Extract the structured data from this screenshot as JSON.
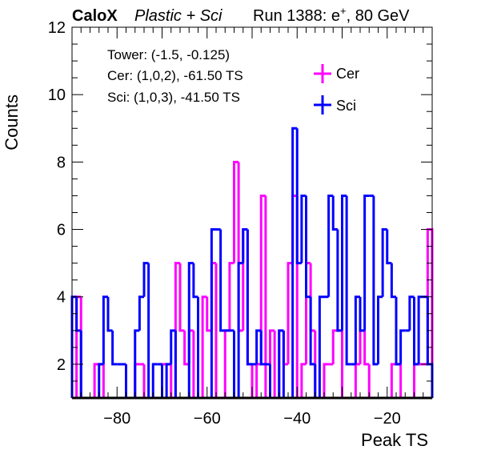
{
  "chart_data": {
    "type": "histogram",
    "title": {
      "experiment": "CaloX",
      "detector": "Plastic + Sci",
      "run_prefix": "Run 1388: e",
      "particle_sup": "+",
      "run_suffix": ", 80 GeV"
    },
    "xlabel": "Peak TS",
    "ylabel": "Counts",
    "xlim": [
      -90,
      -10
    ],
    "ylim": [
      1,
      12
    ],
    "x_ticks": [
      -80,
      -60,
      -40,
      -20
    ],
    "y_ticks": [
      2,
      4,
      6,
      8,
      10,
      12
    ],
    "bin_width": 1,
    "legend_position": "top-right",
    "info_lines": [
      "Tower: (-1.5, -0.125)",
      "Cer: (1,0,2), -61.50 TS",
      "Sci: (1,0,3), -41.50 TS"
    ],
    "series": [
      {
        "name": "Cer",
        "color": "#ff00ff",
        "bin_edges_start": -90,
        "values": [
          0,
          4,
          0,
          0,
          0,
          2,
          2,
          0,
          0,
          0,
          0,
          0,
          0,
          0,
          2,
          2,
          0,
          0,
          0,
          0,
          2,
          2,
          0,
          5,
          3,
          2,
          3,
          0,
          0,
          4,
          3,
          5,
          1,
          0,
          3,
          5,
          8,
          3,
          6,
          2,
          0,
          2,
          7,
          1,
          3,
          0,
          3,
          2,
          5,
          7,
          0,
          2,
          5,
          3,
          1,
          0,
          2,
          2,
          3,
          3,
          1,
          0,
          0,
          2,
          3,
          2,
          0,
          0,
          0,
          0,
          0,
          2,
          2,
          0,
          0,
          0,
          2,
          2,
          2,
          6
        ]
      },
      {
        "name": "Sci",
        "color": "#0000ff",
        "bin_edges_start": -90,
        "values": [
          4,
          3,
          0,
          0,
          0,
          0,
          2,
          4,
          3,
          2,
          2,
          2,
          0,
          0,
          3,
          4,
          5,
          0,
          2,
          2,
          0,
          2,
          3,
          0,
          0,
          0,
          5,
          4,
          0,
          0,
          0,
          6,
          6,
          3,
          3,
          3,
          0,
          5,
          6,
          2,
          2,
          3,
          2,
          2,
          0,
          0,
          3,
          0,
          0,
          9,
          5,
          7,
          4,
          2,
          0,
          4,
          4,
          7,
          6,
          3,
          7,
          2,
          2,
          4,
          3,
          7,
          7,
          2,
          4,
          6,
          5,
          4,
          2,
          3,
          3,
          4,
          2,
          4,
          4,
          2
        ]
      }
    ]
  }
}
